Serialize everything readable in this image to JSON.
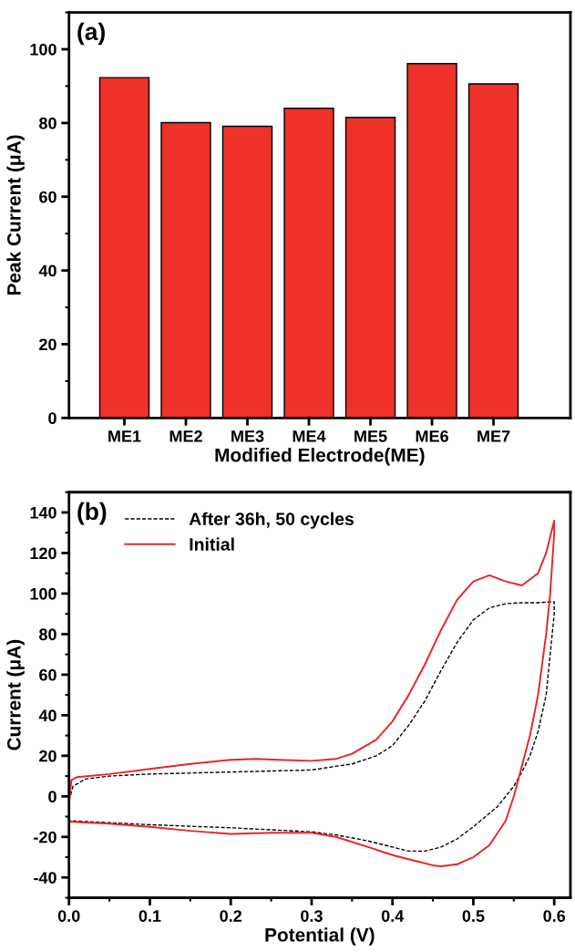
{
  "chart_data": [
    {
      "type": "bar",
      "title": "(a)",
      "xlabel": "Modified Electrode(ME)",
      "ylabel": "Peak Current (μA)",
      "categories": [
        "ME1",
        "ME2",
        "ME3",
        "ME4",
        "ME5",
        "ME6",
        "ME7"
      ],
      "values": [
        92.3,
        80.1,
        79.1,
        84.0,
        81.5,
        96.1,
        90.6
      ],
      "color": "#ee3129",
      "ylim": [
        0,
        110
      ],
      "yticks": [
        0,
        20,
        40,
        60,
        80,
        100
      ],
      "grid": false
    },
    {
      "type": "line",
      "title": "(b)",
      "xlabel": "Potential (V)",
      "ylabel": "Current (μA)",
      "xlim": [
        0,
        0.62
      ],
      "xticks": [
        {
          "value": 0,
          "label": "0.0"
        },
        0.1,
        0.2,
        0.3,
        0.4,
        0.5,
        0.6
      ],
      "ylim": [
        -50,
        150
      ],
      "yticks": [
        -40,
        -20,
        0,
        20,
        40,
        60,
        80,
        100,
        120,
        140
      ],
      "grid": false,
      "legend": "top left",
      "marker": "none",
      "series": [
        {
          "name": "After 36h, 50 cycles",
          "color": "#000000",
          "line_style": "dashed",
          "x": [
            0,
            0.005,
            0.02,
            0.05,
            0.1,
            0.2,
            0.3,
            0.35,
            0.38,
            0.4,
            0.42,
            0.44,
            0.46,
            0.48,
            0.5,
            0.52,
            0.54,
            0.56,
            0.58,
            0.6,
            0.6,
            0.595,
            0.59,
            0.58,
            0.57,
            0.56,
            0.55,
            0.53,
            0.5,
            0.48,
            0.46,
            0.44,
            0.42,
            0.4,
            0.37,
            0.33,
            0.3,
            0.2,
            0.1,
            0
          ],
          "values": [
            -2,
            5,
            8.5,
            10,
            11,
            12,
            13,
            16,
            20,
            25,
            35,
            47,
            62,
            76,
            87,
            93,
            95,
            95.5,
            95.5,
            96,
            90,
            70,
            50,
            32,
            20,
            12,
            5,
            -5,
            -15,
            -21,
            -25,
            -27,
            -27,
            -25,
            -22,
            -19,
            -17.5,
            -15.5,
            -14,
            -12
          ]
        },
        {
          "name": "Initial",
          "color": "#e8252a",
          "line_style": "solid",
          "x": [
            0,
            0.003,
            0.01,
            0.05,
            0.1,
            0.15,
            0.2,
            0.23,
            0.26,
            0.3,
            0.33,
            0.35,
            0.38,
            0.4,
            0.42,
            0.44,
            0.46,
            0.48,
            0.5,
            0.52,
            0.54,
            0.56,
            0.58,
            0.59,
            0.6,
            0.6,
            0.595,
            0.59,
            0.58,
            0.57,
            0.56,
            0.55,
            0.54,
            0.52,
            0.5,
            0.48,
            0.46,
            0.45,
            0.43,
            0.4,
            0.37,
            0.33,
            0.3,
            0.25,
            0.2,
            0.15,
            0.1,
            0.05,
            0
          ],
          "values": [
            -2,
            8,
            9.5,
            11,
            13.5,
            16,
            18,
            18.5,
            18,
            17.5,
            18.5,
            21,
            28,
            37,
            50,
            65,
            82,
            97,
            106,
            109,
            106,
            104,
            110,
            120,
            136,
            130,
            100,
            80,
            50,
            30,
            15,
            0,
            -12,
            -24,
            -30,
            -33.5,
            -34.5,
            -34,
            -32,
            -29,
            -25,
            -20,
            -18,
            -18,
            -18.5,
            -17,
            -15,
            -13.5,
            -12.5
          ]
        }
      ]
    }
  ]
}
